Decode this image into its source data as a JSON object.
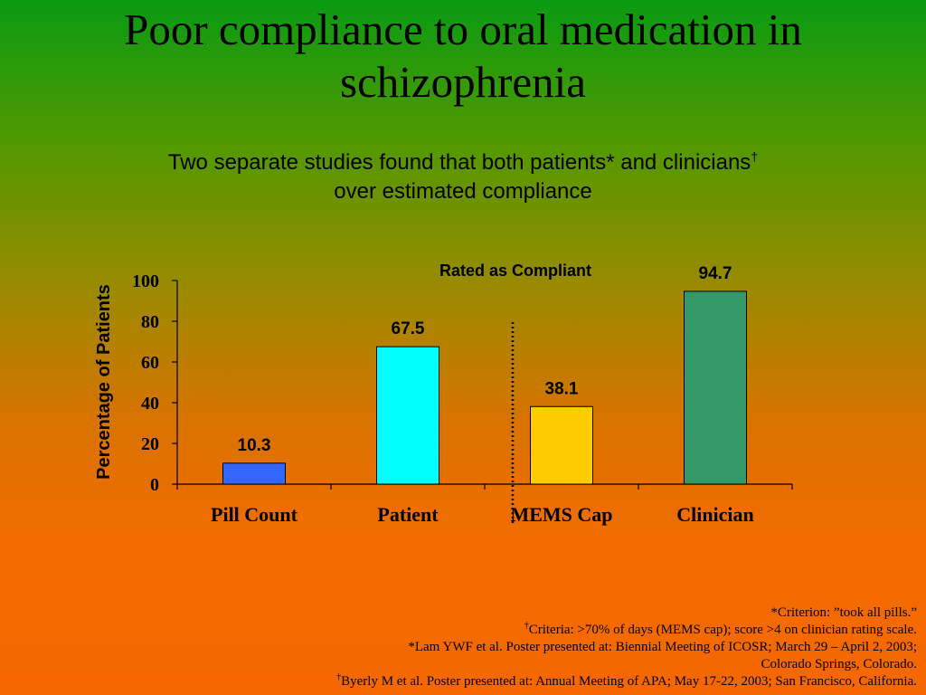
{
  "slide": {
    "title_line1": "Poor compliance to oral medication in",
    "title_line2": "schizophrenia",
    "subtitle_line1": "Two separate studies found that both patients* and clinicians",
    "subtitle_dagger": "†",
    "subtitle_line2": "over estimated compliance"
  },
  "chart_data": {
    "type": "bar",
    "title": "",
    "annotation": "Rated as Compliant",
    "xlabel": "",
    "ylabel": "Percentage of Patients",
    "ylim": [
      0,
      100
    ],
    "yticks": [
      "0",
      "20",
      "40",
      "60",
      "80",
      "100"
    ],
    "categories": [
      "Pill Count",
      "Patient",
      "MEMS Cap",
      "Clinician"
    ],
    "values": [
      10.3,
      67.5,
      38.1,
      94.7
    ],
    "data_labels": [
      "10.3",
      "67.5",
      "38.1",
      "94.7"
    ],
    "colors": [
      "#3366ff",
      "#00ffff",
      "#ffcc00",
      "#339966"
    ],
    "grid": false,
    "legend": "none",
    "separator": "dotted line between Patient and MEMS Cap"
  },
  "footnotes": {
    "line1": "*Criterion: ”took all pills.”",
    "line2_mark": "†",
    "line2": "Criteria: >70% of days (MEMS cap); score >4 on clinician rating scale.",
    "line3": "*Lam YWF et al. Poster presented at: Biennial Meeting of ICOSR; March 29 – April 2, 2003;",
    "line4": "Colorado Springs, Colorado.",
    "line5_mark": "†",
    "line5": "Byerly M et al. Poster presented at: Annual Meeting of APA; May 17-22, 2003; San Francisco, California."
  }
}
